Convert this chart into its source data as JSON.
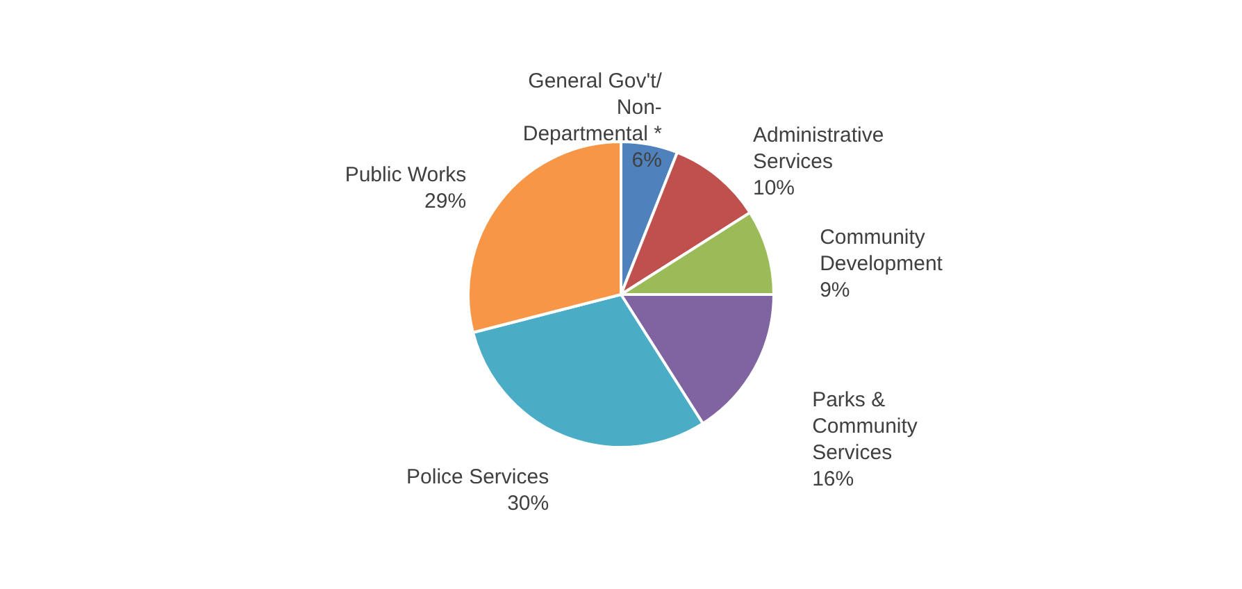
{
  "chart_data": {
    "type": "pie",
    "categories": [
      "General Gov't/Non-Departmental *",
      "Administrative Services",
      "Community Development",
      "Parks & Community Services",
      "Police Services",
      "Public Works"
    ],
    "values": [
      6,
      10,
      9,
      16,
      30,
      29
    ],
    "colors": [
      "#4f81bd",
      "#c0504d",
      "#9bbb59",
      "#8064a2",
      "#4bacc6",
      "#f79646"
    ],
    "value_labels": [
      "6%",
      "10%",
      "9%",
      "16%",
      "30%",
      "29%"
    ]
  }
}
